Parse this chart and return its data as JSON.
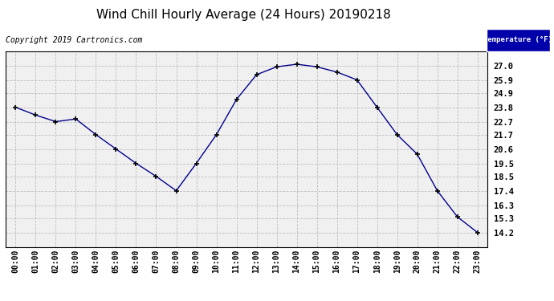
{
  "title": "Wind Chill Hourly Average (24 Hours) 20190218",
  "copyright_text": "Copyright 2019 Cartronics.com",
  "legend_label": "Temperature (°F)",
  "hours": [
    "00:00",
    "01:00",
    "02:00",
    "03:00",
    "04:00",
    "05:00",
    "06:00",
    "07:00",
    "08:00",
    "09:00",
    "10:00",
    "11:00",
    "12:00",
    "13:00",
    "14:00",
    "15:00",
    "16:00",
    "17:00",
    "18:00",
    "19:00",
    "20:00",
    "21:00",
    "22:00",
    "23:00"
  ],
  "values": [
    23.8,
    23.2,
    22.7,
    22.9,
    21.7,
    20.6,
    19.5,
    18.5,
    17.4,
    19.5,
    21.7,
    24.4,
    26.3,
    26.9,
    27.1,
    26.9,
    26.5,
    25.9,
    23.8,
    21.7,
    20.2,
    17.4,
    15.4,
    14.2
  ],
  "ylim": [
    13.1,
    28.1
  ],
  "yticks": [
    14.2,
    15.3,
    16.3,
    17.4,
    18.5,
    19.5,
    20.6,
    21.7,
    22.7,
    23.8,
    24.9,
    25.9,
    27.0
  ],
  "line_color": "#00008B",
  "marker_color": "#000000",
  "bg_color": "#ffffff",
  "plot_bg_color": "#f0f0f0",
  "grid_color": "#aaaaaa",
  "title_color": "#000000",
  "legend_bg": "#0000aa",
  "legend_text_color": "#ffffff",
  "copyright_color": "#000000",
  "title_fontsize": 11,
  "copyright_fontsize": 7,
  "tick_fontsize": 7,
  "ytick_fontsize": 7.5
}
